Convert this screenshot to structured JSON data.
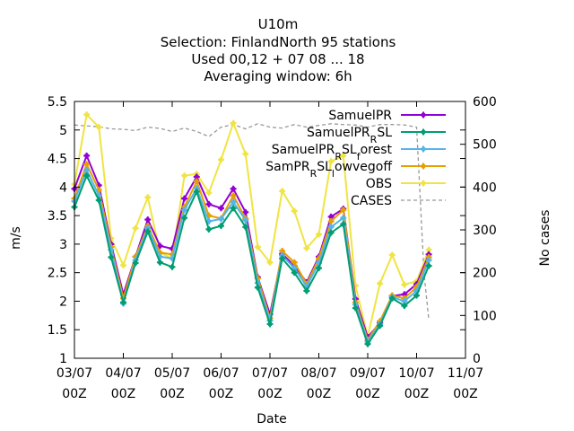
{
  "title": {
    "line1": "U10m",
    "line2": "Selection: FinlandNorth     95 stations",
    "line3": "Used  00,12  + 07 08 ... 18",
    "line4": "Averaging window:  6h"
  },
  "colors": {
    "SamuelPR": "#9400d3",
    "SamuelPR_RSL": "#009e73",
    "SamuelPR_RSL_forest": "#56b4e9",
    "SamPR_RSL_lowvegoff": "#e69f00",
    "OBS": "#f0e442",
    "CASES": "#999999"
  },
  "chart_data": {
    "type": "line",
    "xlabel": "Date",
    "ylabel": "m/s",
    "y2label": "No cases",
    "ylim": [
      1,
      5.5
    ],
    "y2lim": [
      0,
      600
    ],
    "yticks": [
      "1",
      "1.5",
      "2",
      "2.5",
      "3",
      "3.5",
      "4",
      "4.5",
      "5",
      "5.5"
    ],
    "y2ticks": [
      "0",
      "100",
      "200",
      "300",
      "400",
      "500",
      "600"
    ],
    "xlim": [
      0,
      8
    ],
    "xticks": [
      {
        "top": "03/07",
        "bottom": "00Z"
      },
      {
        "top": "04/07",
        "bottom": "00Z"
      },
      {
        "top": "05/07",
        "bottom": "00Z"
      },
      {
        "top": "06/07",
        "bottom": "00Z"
      },
      {
        "top": "07/07",
        "bottom": "00Z"
      },
      {
        "top": "08/07",
        "bottom": "00Z"
      },
      {
        "top": "09/07",
        "bottom": "00Z"
      },
      {
        "top": "10/07",
        "bottom": "00Z"
      },
      {
        "top": "11/07",
        "bottom": "00Z"
      }
    ],
    "x_days": [
      0,
      0.25,
      0.5,
      0.75,
      1,
      1.25,
      1.5,
      1.75,
      2,
      2.25,
      2.5,
      2.75,
      3,
      3.25,
      3.5,
      3.75,
      4,
      4.25,
      4.5,
      4.75,
      5,
      5.25,
      5.5,
      5.75,
      6,
      6.25,
      6.5,
      6.75,
      7,
      7.25
    ],
    "legend_position": "top-right",
    "series": [
      {
        "name": "SamuelPR",
        "key": "SamuelPR",
        "marker": "plus",
        "values": [
          3.97,
          4.55,
          4.03,
          3.0,
          2.12,
          2.78,
          3.43,
          2.97,
          2.92,
          3.8,
          4.18,
          3.7,
          3.63,
          3.97,
          3.56,
          2.42,
          1.77,
          2.83,
          2.62,
          2.33,
          2.78,
          3.48,
          3.62,
          2.04,
          1.37,
          1.62,
          2.09,
          2.12,
          2.3,
          2.82
        ]
      },
      {
        "name": "SamuelPR_RSL",
        "key": "SamuelPR_RSL",
        "marker": "plus",
        "values": [
          3.65,
          4.2,
          3.77,
          2.77,
          1.98,
          2.67,
          3.22,
          2.68,
          2.6,
          3.46,
          3.92,
          3.26,
          3.32,
          3.63,
          3.3,
          2.24,
          1.6,
          2.75,
          2.5,
          2.18,
          2.58,
          3.2,
          3.35,
          1.88,
          1.25,
          1.57,
          2.05,
          1.92,
          2.1,
          2.62
        ]
      },
      {
        "name": "SamuelPR_RSL_forest",
        "key": "SamuelPR_RSL_forest",
        "marker": "plus",
        "values": [
          3.75,
          4.3,
          3.85,
          2.9,
          1.96,
          2.72,
          3.28,
          2.78,
          2.75,
          3.6,
          3.98,
          3.4,
          3.44,
          3.74,
          3.42,
          2.32,
          1.66,
          2.8,
          2.58,
          2.26,
          2.67,
          3.3,
          3.46,
          1.94,
          1.29,
          1.6,
          2.07,
          2.0,
          2.18,
          2.72
        ]
      },
      {
        "name": "SamPR_RSL_lowvegoff",
        "key": "SamPR_RSL_lowvegoff",
        "marker": "plus",
        "values": [
          3.8,
          4.4,
          3.95,
          2.95,
          2.05,
          2.78,
          3.32,
          2.85,
          2.82,
          3.65,
          4.1,
          3.5,
          3.45,
          3.85,
          3.45,
          2.4,
          1.7,
          2.88,
          2.68,
          2.3,
          2.75,
          3.4,
          3.6,
          1.98,
          1.32,
          1.65,
          2.1,
          2.05,
          2.25,
          2.77
        ]
      },
      {
        "name": "OBS",
        "key": "OBS",
        "marker": "plus",
        "values": [
          4.05,
          5.27,
          5.05,
          3.1,
          2.63,
          3.28,
          3.82,
          2.85,
          2.75,
          4.2,
          4.23,
          3.9,
          4.48,
          5.12,
          4.58,
          2.95,
          2.68,
          3.93,
          3.58,
          2.93,
          3.17,
          4.45,
          4.55,
          2.27,
          1.38,
          2.31,
          2.81,
          2.29,
          2.35,
          2.9
        ]
      }
    ],
    "cases": {
      "name": "CASES",
      "x_days": [
        0,
        0.25,
        0.5,
        0.75,
        1,
        1.25,
        1.5,
        1.75,
        2,
        2.25,
        2.5,
        2.75,
        3,
        3.25,
        3.5,
        3.75,
        4,
        4.25,
        4.5,
        4.75,
        5,
        5.25,
        5.5,
        5.75,
        6,
        6.25,
        6.5,
        6.75,
        7,
        7.05,
        7.15,
        7.25
      ],
      "values": [
        545,
        543,
        541,
        536,
        535,
        532,
        540,
        537,
        530,
        538,
        530,
        518,
        540,
        546,
        536,
        548,
        540,
        538,
        546,
        540,
        544,
        548,
        546,
        545,
        540,
        546,
        546,
        545,
        540,
        430,
        200,
        90
      ]
    }
  }
}
